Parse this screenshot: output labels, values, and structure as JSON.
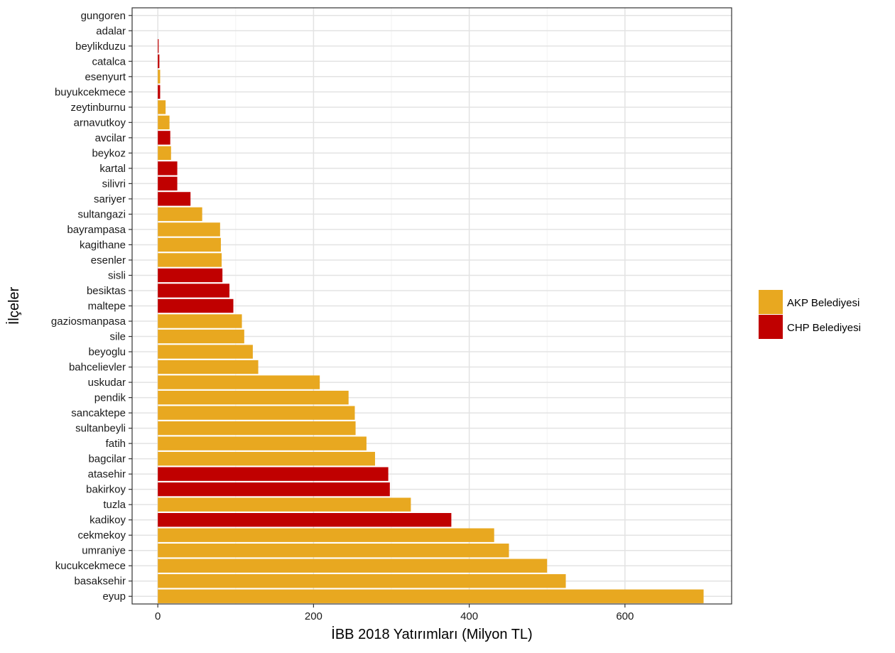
{
  "chart_data": {
    "type": "bar",
    "orientation": "horizontal",
    "title": "",
    "xlabel": "İBB 2018 Yatırımları (Milyon TL)",
    "ylabel": "İlçeler",
    "xlim": [
      -33,
      737
    ],
    "x_ticks": [
      0,
      200,
      400,
      600
    ],
    "grid": true,
    "legend_position": "right",
    "categories": [
      "gungoren",
      "adalar",
      "beylikduzu",
      "catalca",
      "esenyurt",
      "buyukcekmece",
      "zeytinburnu",
      "arnavutkoy",
      "avcilar",
      "beykoz",
      "kartal",
      "silivri",
      "sariyer",
      "sultangazi",
      "bayrampasa",
      "kagithane",
      "esenler",
      "sisli",
      "besiktas",
      "maltepe",
      "gaziosmanpasa",
      "sile",
      "beyoglu",
      "bahcelievler",
      "uskudar",
      "pendik",
      "sancaktepe",
      "sultanbeyli",
      "fatih",
      "bagcilar",
      "atasehir",
      "bakirkoy",
      "tuzla",
      "kadikoy",
      "cekmekoy",
      "umraniye",
      "kucukcekmece",
      "basaksehir",
      "eyup"
    ],
    "values": [
      0,
      0,
      1,
      2,
      3,
      3,
      10,
      15,
      16,
      17,
      25,
      25,
      42,
      57,
      80,
      81,
      82,
      83,
      92,
      97,
      108,
      111,
      122,
      129,
      208,
      245,
      253,
      254,
      268,
      279,
      296,
      298,
      325,
      377,
      432,
      451,
      500,
      524,
      701
    ],
    "groups": [
      "AKP",
      "CHP",
      "CHP",
      "CHP",
      "AKP",
      "CHP",
      "AKP",
      "AKP",
      "CHP",
      "AKP",
      "CHP",
      "CHP",
      "CHP",
      "AKP",
      "AKP",
      "AKP",
      "AKP",
      "CHP",
      "CHP",
      "CHP",
      "AKP",
      "AKP",
      "AKP",
      "AKP",
      "AKP",
      "AKP",
      "AKP",
      "AKP",
      "AKP",
      "AKP",
      "CHP",
      "CHP",
      "AKP",
      "CHP",
      "AKP",
      "AKP",
      "AKP",
      "AKP",
      "AKP"
    ],
    "legend": [
      {
        "key": "AKP",
        "label": "AKP Belediyesi",
        "color": "#E8A820"
      },
      {
        "key": "CHP",
        "label": "CHP Belediyesi",
        "color": "#C00000"
      }
    ]
  }
}
